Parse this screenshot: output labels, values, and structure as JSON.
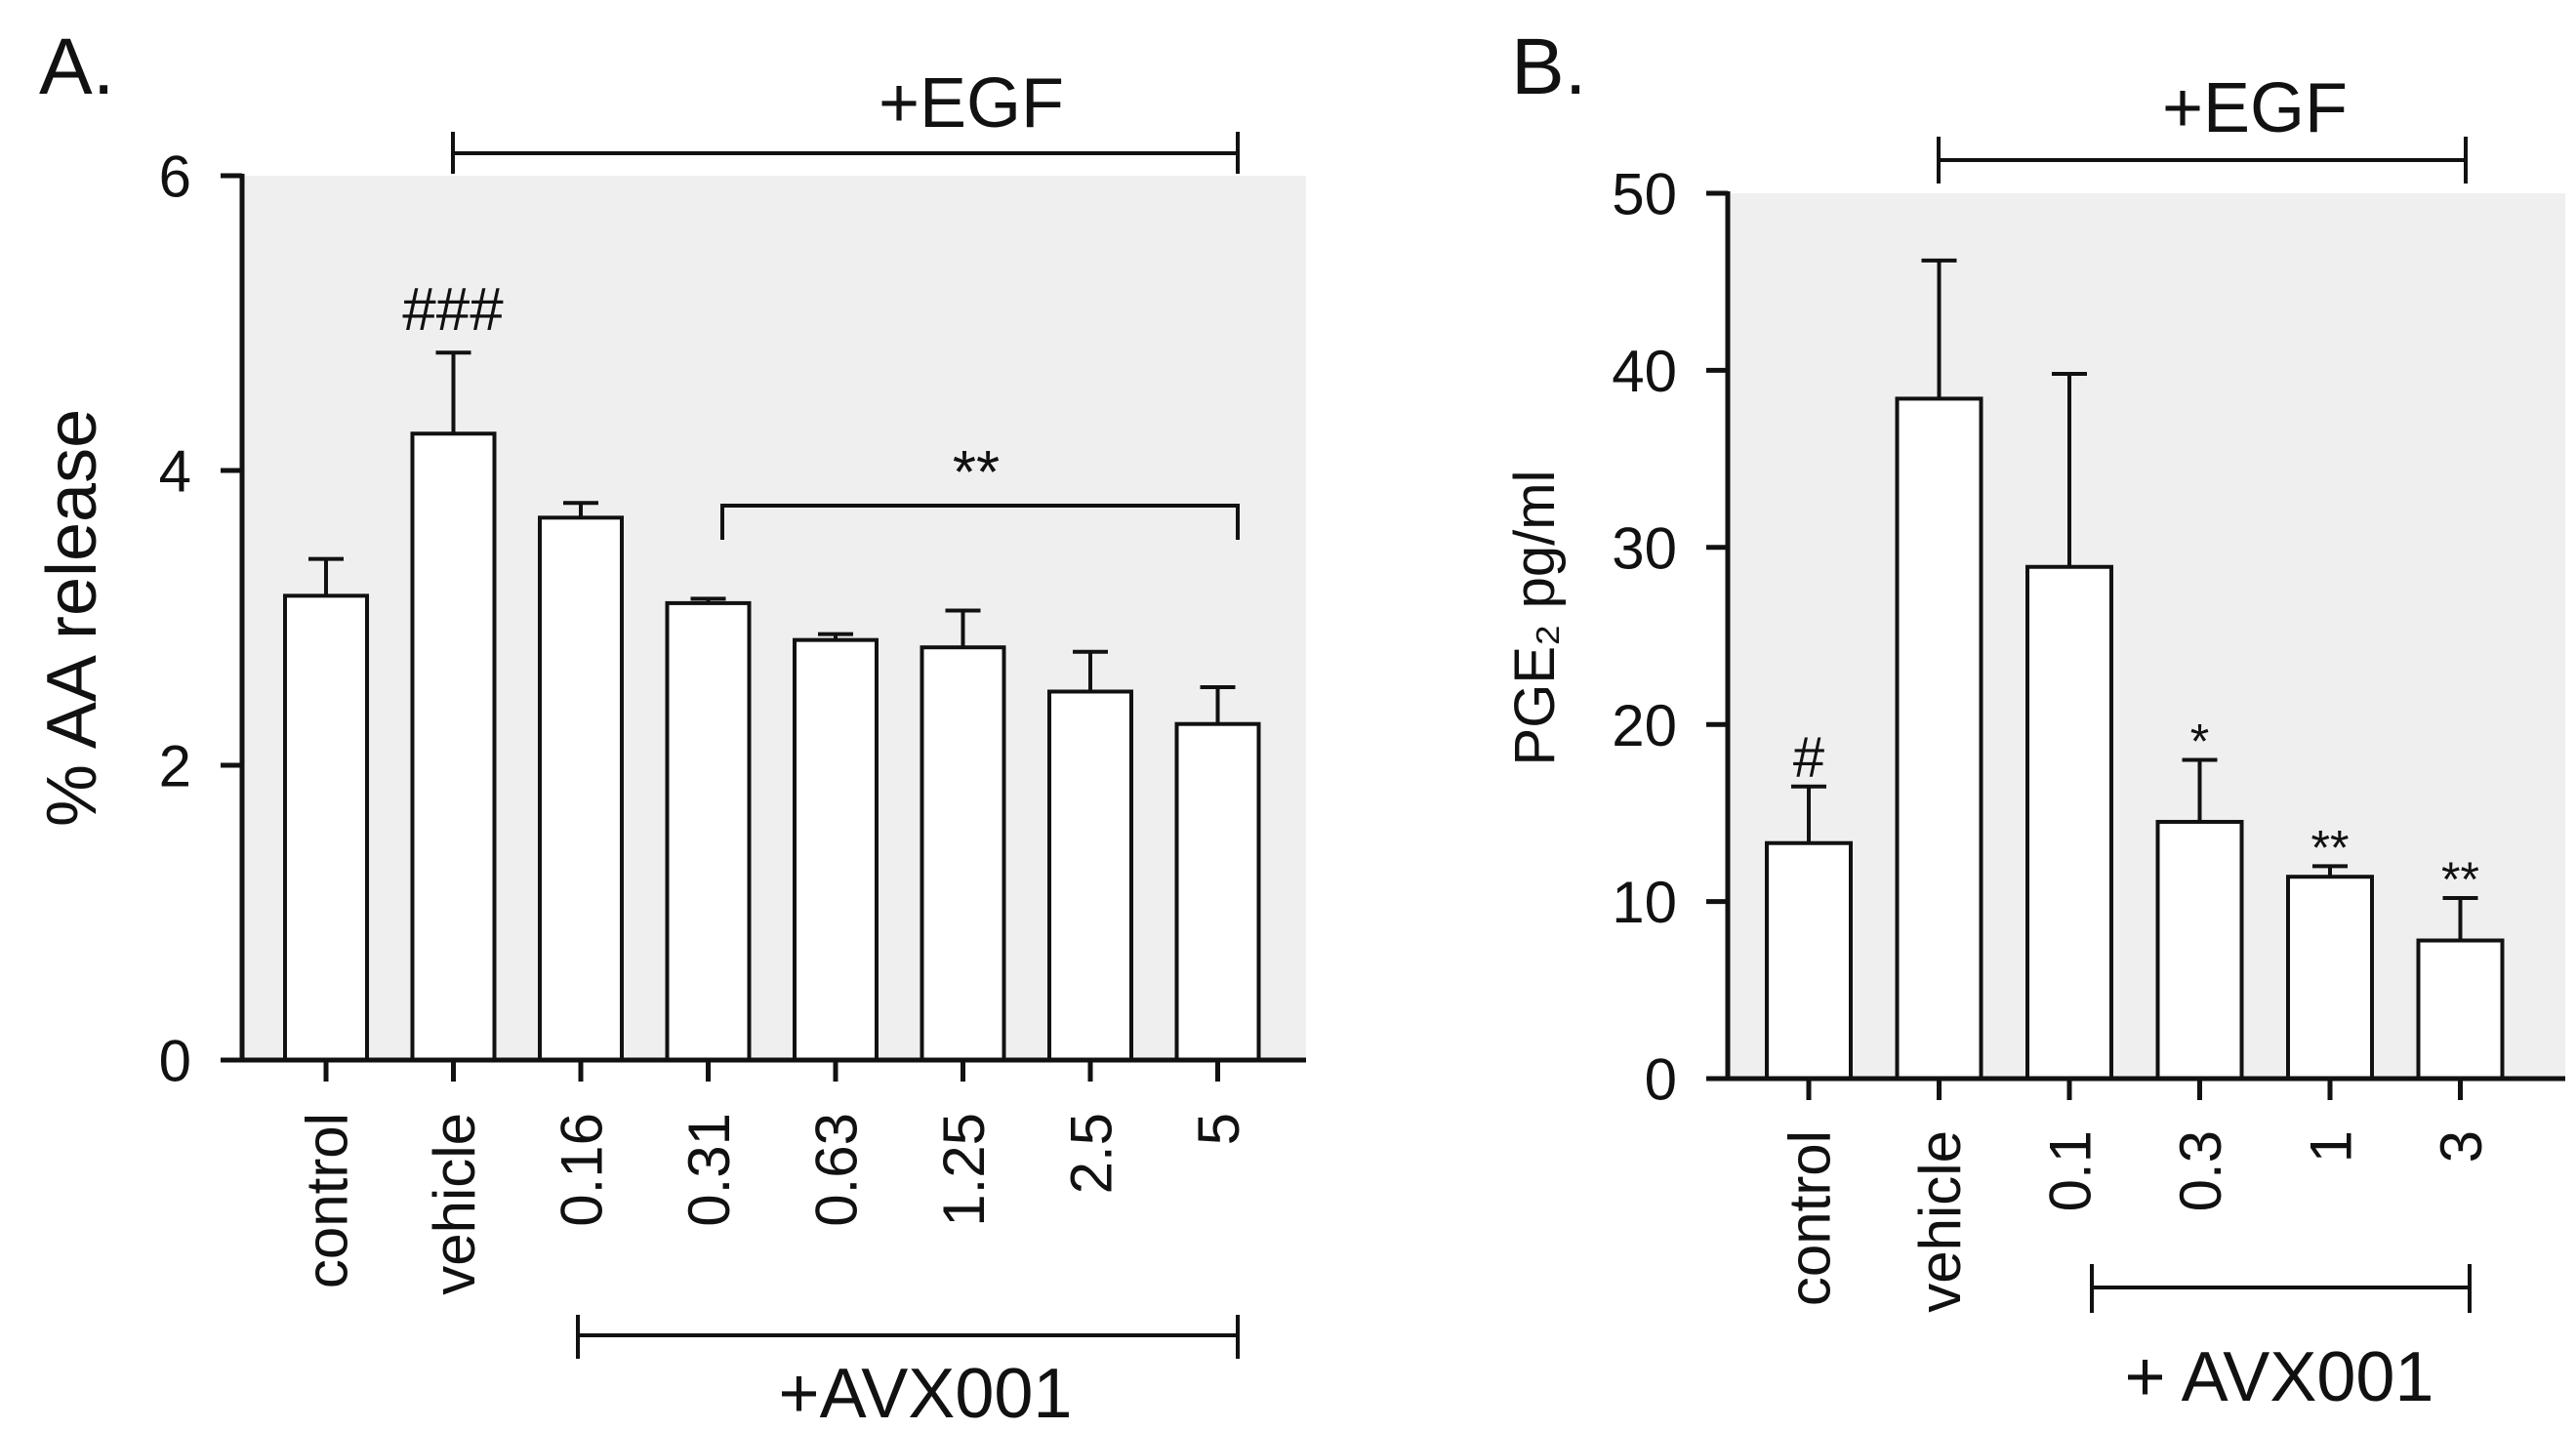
{
  "chart_data": [
    {
      "panel_label": "A.",
      "type": "bar",
      "title": "",
      "xlabel": "",
      "ylabel": "% AA release",
      "ylim": [
        0,
        6
      ],
      "yticks": [
        "0",
        "2",
        "4",
        "6"
      ],
      "categories": [
        "control",
        "vehicle",
        "0.16",
        "0.31",
        "0.63",
        "1.25",
        "2.5",
        "5"
      ],
      "values": [
        3.15,
        4.25,
        3.68,
        3.1,
        2.85,
        2.8,
        2.5,
        2.28
      ],
      "errors": [
        0.25,
        0.55,
        0.1,
        0.03,
        0.04,
        0.25,
        0.27,
        0.25
      ],
      "annotations": [
        "###",
        "**"
      ],
      "egf_label": "+EGF",
      "treatment_label": "+AVX001",
      "background_color": "#efefef"
    },
    {
      "panel_label": "B.",
      "type": "bar",
      "title": "",
      "xlabel": "",
      "ylabel": "PGE₂ pg/ml",
      "ylim": [
        0,
        50
      ],
      "yticks": [
        "0",
        "10",
        "20",
        "30",
        "40",
        "50"
      ],
      "categories": [
        "control",
        "vehicle",
        "0.1",
        "0.3",
        "1",
        "3"
      ],
      "values": [
        13.3,
        38.4,
        28.9,
        14.5,
        11.4,
        7.8
      ],
      "errors": [
        3.2,
        7.8,
        10.9,
        3.5,
        0.6,
        2.4
      ],
      "annotations": [
        "#",
        "",
        "",
        "*",
        "**",
        "**"
      ],
      "egf_label": "+EGF",
      "treatment_label": "+ AVX001",
      "background_color": "#efefef"
    }
  ]
}
